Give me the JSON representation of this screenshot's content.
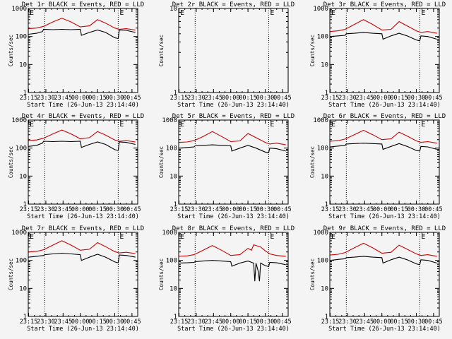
{
  "chart_data": [
    {
      "type": "line",
      "title": "Det 1r BLACK = Events, RED = LLD",
      "xlabel": "Start Time (26-Jun-13 23:14:40)",
      "ylabel": "Counts/sec",
      "yscale": "log",
      "ylim": [
        1,
        1000
      ],
      "x_tick_labels": [
        "23:15",
        "23:30",
        "23:45",
        "00:00",
        "00:15",
        "00:30",
        "00:45"
      ],
      "vertical_markers": [
        "23:29",
        "00:33"
      ],
      "marker_labels": [
        "E",
        "E"
      ],
      "series": [
        {
          "color": "#000000",
          "x": [
            "23:15",
            "23:22",
            "23:27",
            "23:28",
            "23:36",
            "23:44",
            "23:52",
            "24:00",
            "24:01",
            "24:08",
            "24:15",
            "24:22",
            "24:30",
            "24:33",
            "24:34",
            "24:40",
            "24:48"
          ],
          "y": [
            120,
            130,
            150,
            180,
            175,
            180,
            175,
            180,
            110,
            140,
            170,
            140,
            90,
            85,
            170,
            165,
            140
          ]
        },
        {
          "color": "#cc0000",
          "x": [
            "23:15",
            "23:22",
            "23:28",
            "23:36",
            "23:44",
            "23:52",
            "24:00",
            "24:08",
            "24:15",
            "24:22",
            "24:30",
            "24:34",
            "24:40",
            "24:48"
          ],
          "y": [
            190,
            200,
            230,
            330,
            450,
            330,
            220,
            240,
            400,
            300,
            200,
            180,
            190,
            170
          ]
        }
      ]
    },
    {
      "type": "line",
      "title": "Det 2r BLACK = Events, RED = LLD",
      "xlabel": "Start Time (26-Jun-13 23:14:40)",
      "ylabel": "Counts/sec",
      "yscale": "log",
      "ylim": [
        1,
        10
      ],
      "x_tick_labels": [
        "23:15",
        "23:30",
        "23:45",
        "00:00",
        "00:15",
        "00:30",
        "00:45"
      ],
      "vertical_markers": [
        "23:29",
        "00:33"
      ],
      "marker_labels": [
        "E",
        "E"
      ],
      "series": []
    },
    {
      "type": "line",
      "title": "Det 3r BLACK = Events, RED = LLD",
      "xlabel": "Start Time (26-Jun-13 23:14:40)",
      "ylabel": "Counts/sec",
      "yscale": "log",
      "ylim": [
        1,
        1000
      ],
      "x_tick_labels": [
        "23:15",
        "23:30",
        "23:45",
        "00:00",
        "00:15",
        "00:30",
        "00:45"
      ],
      "vertical_markers": [
        "23:29",
        "00:33"
      ],
      "marker_labels": [
        "E",
        "E"
      ],
      "series": [
        {
          "color": "#000000",
          "x": [
            "23:15",
            "23:22",
            "23:28",
            "23:29",
            "23:36",
            "23:44",
            "23:52",
            "24:00",
            "24:01",
            "24:08",
            "24:15",
            "24:22",
            "24:30",
            "24:33",
            "24:34",
            "24:40",
            "24:48"
          ],
          "y": [
            100,
            105,
            110,
            125,
            130,
            140,
            130,
            125,
            80,
            105,
            130,
            105,
            75,
            70,
            105,
            100,
            80
          ]
        },
        {
          "color": "#cc0000",
          "x": [
            "23:15",
            "23:22",
            "23:28",
            "23:36",
            "23:44",
            "23:52",
            "24:00",
            "24:08",
            "24:15",
            "24:22",
            "24:30",
            "24:34",
            "24:40",
            "24:48"
          ],
          "y": [
            150,
            160,
            180,
            270,
            400,
            270,
            170,
            180,
            340,
            240,
            160,
            140,
            150,
            130
          ]
        }
      ]
    },
    {
      "type": "line",
      "title": "Det 4r BLACK = Events, RED = LLD",
      "xlabel": "Start Time (26-Jun-13 23:14:40)",
      "ylabel": "Counts/sec",
      "yscale": "log",
      "ylim": [
        1,
        1000
      ],
      "x_tick_labels": [
        "23:15",
        "23:30",
        "23:45",
        "00:00",
        "00:15",
        "00:30",
        "00:45"
      ],
      "vertical_markers": [
        "23:29",
        "00:33"
      ],
      "marker_labels": [
        "E",
        "E"
      ],
      "series": [
        {
          "color": "#000000",
          "x": [
            "23:15",
            "23:22",
            "23:27",
            "23:28",
            "23:36",
            "23:44",
            "23:52",
            "24:00",
            "24:01",
            "24:08",
            "24:15",
            "24:22",
            "24:30",
            "24:33",
            "24:34",
            "24:40",
            "24:48"
          ],
          "y": [
            115,
            125,
            150,
            175,
            170,
            175,
            170,
            175,
            105,
            135,
            165,
            135,
            88,
            82,
            165,
            160,
            135
          ]
        },
        {
          "color": "#cc0000",
          "x": [
            "23:15",
            "23:22",
            "23:28",
            "23:36",
            "23:44",
            "23:52",
            "24:00",
            "24:08",
            "24:15",
            "24:22",
            "24:30",
            "24:34",
            "24:40",
            "24:48"
          ],
          "y": [
            185,
            195,
            225,
            320,
            440,
            320,
            215,
            235,
            390,
            290,
            195,
            175,
            185,
            165
          ]
        }
      ]
    },
    {
      "type": "line",
      "title": "Det 5r BLACK = Events, RED = LLD",
      "xlabel": "Start Time (26-Jun-13 23:14:40)",
      "ylabel": "Counts/sec",
      "yscale": "log",
      "ylim": [
        1,
        1000
      ],
      "x_tick_labels": [
        "23:15",
        "23:30",
        "23:45",
        "00:00",
        "00:15",
        "00:30",
        "00:45"
      ],
      "vertical_markers": [
        "23:29",
        "00:33"
      ],
      "marker_labels": [
        "E",
        "E"
      ],
      "series": [
        {
          "color": "#000000",
          "x": [
            "23:15",
            "23:22",
            "23:28",
            "23:29",
            "23:36",
            "23:44",
            "23:52",
            "24:00",
            "24:01",
            "24:08",
            "24:15",
            "24:22",
            "24:30",
            "24:33",
            "24:34",
            "24:40",
            "24:48"
          ],
          "y": [
            100,
            105,
            110,
            120,
            125,
            130,
            125,
            120,
            78,
            100,
            125,
            100,
            72,
            68,
            100,
            95,
            78
          ]
        },
        {
          "color": "#cc0000",
          "x": [
            "23:15",
            "23:22",
            "23:28",
            "23:36",
            "23:44",
            "23:52",
            "24:00",
            "24:08",
            "24:15",
            "24:22",
            "24:30",
            "24:34",
            "24:40",
            "24:48"
          ],
          "y": [
            160,
            165,
            185,
            260,
            390,
            260,
            170,
            180,
            330,
            235,
            160,
            140,
            150,
            130
          ]
        }
      ]
    },
    {
      "type": "line",
      "title": "Det 6r BLACK = Events, RED = LLD",
      "xlabel": "Start Time (26-Jun-13 23:14:40)",
      "ylabel": "Counts/sec",
      "yscale": "log",
      "ylim": [
        1,
        1000
      ],
      "x_tick_labels": [
        "23:15",
        "23:30",
        "23:45",
        "00:00",
        "00:15",
        "00:30",
        "00:45"
      ],
      "vertical_markers": [
        "23:29",
        "00:33"
      ],
      "marker_labels": [
        "E",
        "E"
      ],
      "series": [
        {
          "color": "#000000",
          "x": [
            "23:15",
            "23:22",
            "23:28",
            "23:29",
            "23:36",
            "23:44",
            "23:52",
            "24:00",
            "24:01",
            "24:08",
            "24:15",
            "24:22",
            "24:30",
            "24:33",
            "24:34",
            "24:40",
            "24:48"
          ],
          "y": [
            110,
            118,
            125,
            140,
            145,
            150,
            145,
            140,
            90,
            115,
            145,
            115,
            82,
            78,
            115,
            110,
            90
          ]
        },
        {
          "color": "#cc0000",
          "x": [
            "23:15",
            "23:22",
            "23:28",
            "23:36",
            "23:44",
            "23:52",
            "24:00",
            "24:08",
            "24:15",
            "24:22",
            "24:30",
            "24:34",
            "24:40",
            "24:48"
          ],
          "y": [
            175,
            185,
            210,
            300,
            430,
            300,
            200,
            215,
            370,
            270,
            180,
            160,
            170,
            150
          ]
        }
      ]
    },
    {
      "type": "line",
      "title": "Det 7r BLACK = Events, RED = LLD",
      "xlabel": "Start Time (26-Jun-13 23:14:40)",
      "ylabel": "Counts/sec",
      "yscale": "log",
      "ylim": [
        1,
        1000
      ],
      "x_tick_labels": [
        "23:15",
        "23:30",
        "23:45",
        "00:00",
        "00:15",
        "00:30",
        "00:45"
      ],
      "vertical_markers": [
        "23:29",
        "00:33"
      ],
      "marker_labels": [
        "E",
        "E"
      ],
      "series": [
        {
          "color": "#000000",
          "x": [
            "23:15",
            "23:22",
            "23:28",
            "23:29",
            "23:36",
            "23:44",
            "23:52",
            "24:00",
            "24:01",
            "24:08",
            "24:15",
            "24:22",
            "24:30",
            "24:33",
            "24:34",
            "24:40",
            "24:48"
          ],
          "y": [
            130,
            140,
            150,
            160,
            170,
            180,
            170,
            160,
            100,
            130,
            165,
            130,
            88,
            82,
            155,
            150,
            130
          ]
        },
        {
          "color": "#cc0000",
          "x": [
            "23:15",
            "23:22",
            "23:28",
            "23:36",
            "23:44",
            "23:52",
            "24:00",
            "24:08",
            "24:15",
            "24:22",
            "24:30",
            "24:34",
            "24:40",
            "24:48"
          ],
          "y": [
            200,
            210,
            240,
            350,
            500,
            350,
            230,
            250,
            430,
            310,
            205,
            185,
            195,
            175
          ]
        }
      ]
    },
    {
      "type": "line",
      "title": "Det 8r BLACK = Events, RED = LLD",
      "xlabel": "Start Time (26-Jun-13 23:14:40)",
      "ylabel": "Counts/sec",
      "yscale": "log",
      "ylim": [
        1,
        1000
      ],
      "x_tick_labels": [
        "23:15",
        "23:30",
        "23:45",
        "00:00",
        "00:15",
        "00:30",
        "00:45"
      ],
      "vertical_markers": [
        "23:29",
        "00:33"
      ],
      "marker_labels": [
        "E",
        "E"
      ],
      "series": [
        {
          "color": "#000000",
          "x": [
            "23:15",
            "23:22",
            "23:28",
            "23:29",
            "23:36",
            "23:44",
            "23:52",
            "24:00",
            "24:01",
            "24:08",
            "24:15",
            "24:20",
            "24:21",
            "24:22",
            "24:24",
            "24:25",
            "24:26",
            "24:30",
            "24:33",
            "24:34",
            "24:40",
            "24:48"
          ],
          "y": [
            80,
            82,
            85,
            90,
            95,
            100,
            95,
            90,
            62,
            80,
            95,
            80,
            18,
            80,
            40,
            18,
            80,
            65,
            60,
            85,
            82,
            70
          ]
        },
        {
          "color": "#cc0000",
          "x": [
            "23:15",
            "23:22",
            "23:28",
            "23:36",
            "23:44",
            "23:52",
            "24:00",
            "24:08",
            "24:15",
            "24:18",
            "24:20",
            "24:22",
            "24:26",
            "24:30",
            "24:34",
            "24:40",
            "24:48"
          ],
          "y": [
            140,
            145,
            160,
            230,
            340,
            230,
            150,
            160,
            270,
            230,
            360,
            340,
            300,
            220,
            170,
            150,
            140
          ]
        }
      ]
    },
    {
      "type": "line",
      "title": "Det 9r BLACK = Events, RED = LLD",
      "xlabel": "Start Time (26-Jun-13 23:14:40)",
      "ylabel": "Counts/sec",
      "yscale": "log",
      "ylim": [
        1,
        1000
      ],
      "x_tick_labels": [
        "23:15",
        "23:30",
        "23:45",
        "00:00",
        "00:15",
        "00:30",
        "00:45"
      ],
      "vertical_markers": [
        "23:29",
        "00:33"
      ],
      "marker_labels": [
        "E",
        "E"
      ],
      "series": [
        {
          "color": "#000000",
          "x": [
            "23:15",
            "23:22",
            "23:28",
            "23:29",
            "23:36",
            "23:44",
            "23:52",
            "24:00",
            "24:01",
            "24:08",
            "24:15",
            "24:22",
            "24:30",
            "24:33",
            "24:34",
            "24:40",
            "24:48"
          ],
          "y": [
            100,
            108,
            115,
            125,
            130,
            140,
            130,
            125,
            80,
            105,
            130,
            105,
            75,
            70,
            105,
            100,
            80
          ]
        },
        {
          "color": "#cc0000",
          "x": [
            "23:15",
            "23:22",
            "23:28",
            "23:36",
            "23:44",
            "23:52",
            "24:00",
            "24:08",
            "24:15",
            "24:22",
            "24:30",
            "24:34",
            "24:40",
            "24:48"
          ],
          "y": [
            155,
            165,
            190,
            280,
            410,
            280,
            180,
            195,
            350,
            250,
            170,
            150,
            160,
            140
          ]
        }
      ]
    }
  ],
  "colors": {
    "background": "#f4f4f4",
    "axes": "#000000",
    "events": "#000000",
    "lld": "#cc0000"
  }
}
